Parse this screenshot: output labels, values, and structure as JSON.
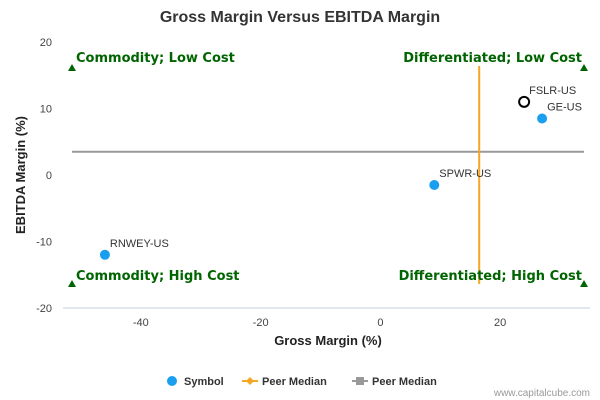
{
  "chart_data": {
    "type": "scatter",
    "title": "Gross Margin Versus EBITDA Margin",
    "xlabel": "Gross Margin (%)",
    "ylabel": "EBITDA Margin (%)",
    "xlim": [
      -53,
      35
    ],
    "ylim": [
      -20,
      20
    ],
    "x_ticks": [
      -40,
      -20,
      0,
      20
    ],
    "y_ticks": [
      20,
      10,
      0,
      -10,
      -20
    ],
    "grid": false,
    "peer_median": {
      "x": 16.5,
      "y": 3.5
    },
    "points": [
      {
        "label": "FSLR-US",
        "x": 24,
        "y": 11,
        "style": "highlight"
      },
      {
        "label": "GE-US",
        "x": 27,
        "y": 8.5,
        "style": "symbol"
      },
      {
        "label": "SPWR-US",
        "x": 9,
        "y": -1.5,
        "style": "symbol"
      },
      {
        "label": "RNWEY-US",
        "x": -46,
        "y": -12,
        "style": "symbol"
      }
    ],
    "quadrant_labels": {
      "top_left": "Commodity; Low Cost",
      "top_right": "Differentiated; Low Cost",
      "bottom_left": "Commodity; High Cost",
      "bottom_right": "Differentiated; High Cost"
    },
    "legend": [
      {
        "label": "Symbol",
        "marker": "circle",
        "color": "#1a9ff0"
      },
      {
        "label": "Peer Median",
        "marker": "diamond",
        "color": "#f5a623"
      },
      {
        "label": "Peer Median",
        "marker": "square",
        "color": "#999999"
      }
    ],
    "legend_position": "bottom",
    "colors": {
      "symbol": "#1a9ff0",
      "vertical_median": "#f5a623",
      "horizontal_median": "#999999",
      "quadrant": "#006400"
    }
  },
  "credit": "www.capitalcube.com"
}
